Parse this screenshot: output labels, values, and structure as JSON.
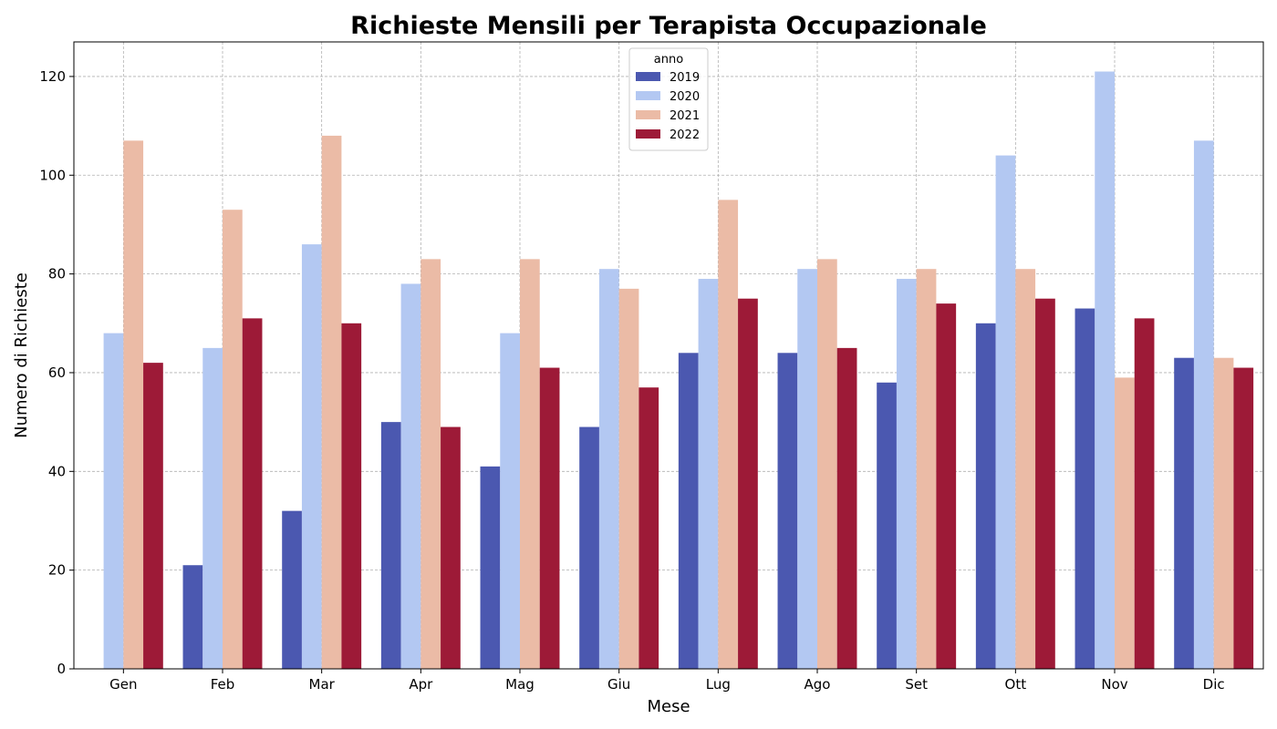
{
  "chart_data": {
    "type": "bar",
    "title": "Richieste Mensili per Terapista Occupazionale",
    "xlabel": "Mese",
    "ylabel": "Numero di Richieste",
    "ylim": [
      0,
      127
    ],
    "yticks": [
      0,
      20,
      40,
      60,
      80,
      100,
      120
    ],
    "grid": true,
    "legend": {
      "title": "anno",
      "placement": "top-center"
    },
    "categories": [
      "Gen",
      "Feb",
      "Mar",
      "Apr",
      "Mag",
      "Giu",
      "Lug",
      "Ago",
      "Set",
      "Ott",
      "Nov",
      "Dic"
    ],
    "series": [
      {
        "name": "2019",
        "color": "#4b58b0",
        "values": [
          0,
          21,
          32,
          50,
          41,
          49,
          64,
          64,
          58,
          70,
          73,
          63
        ]
      },
      {
        "name": "2020",
        "color": "#b3c8f2",
        "values": [
          68,
          65,
          86,
          78,
          68,
          81,
          79,
          81,
          79,
          104,
          121,
          107
        ]
      },
      {
        "name": "2021",
        "color": "#ebbba6",
        "values": [
          107,
          93,
          108,
          83,
          83,
          77,
          95,
          83,
          81,
          81,
          59,
          63
        ]
      },
      {
        "name": "2022",
        "color": "#9d1a37",
        "values": [
          62,
          71,
          70,
          49,
          61,
          57,
          75,
          65,
          74,
          75,
          71,
          61
        ]
      }
    ]
  }
}
